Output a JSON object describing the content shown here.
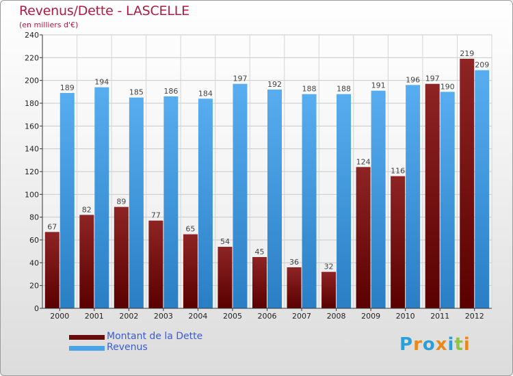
{
  "chart_data": {
    "type": "bar",
    "title": "Revenus/Dette - LASCELLE",
    "subtitle": "(en milliers d'€)",
    "categories": [
      "2000",
      "2001",
      "2002",
      "2003",
      "2004",
      "2005",
      "2006",
      "2007",
      "2008",
      "2009",
      "2010",
      "2011",
      "2012"
    ],
    "series": [
      {
        "name": "Montant de la Dette",
        "color": "#8b1a1a",
        "values": [
          67,
          82,
          89,
          77,
          65,
          54,
          45,
          36,
          32,
          124,
          116,
          197,
          219
        ]
      },
      {
        "name": "Revenus",
        "color": "#4aa3e6",
        "values": [
          189,
          194,
          185,
          186,
          184,
          197,
          192,
          188,
          188,
          191,
          196,
          190,
          209
        ]
      }
    ],
    "ylim": [
      0,
      240
    ],
    "yticks": [
      0,
      20,
      40,
      60,
      80,
      100,
      120,
      140,
      160,
      180,
      200,
      220,
      240
    ],
    "grid": true,
    "legend_position": "bottom-left"
  },
  "logo": {
    "text": "Proxiti",
    "letter_colors": [
      "#2a9fd8",
      "#e8891b",
      "#2a9fd8",
      "#e8891b",
      "#2a9fd8",
      "#8dc63f",
      "#e8891b"
    ]
  }
}
